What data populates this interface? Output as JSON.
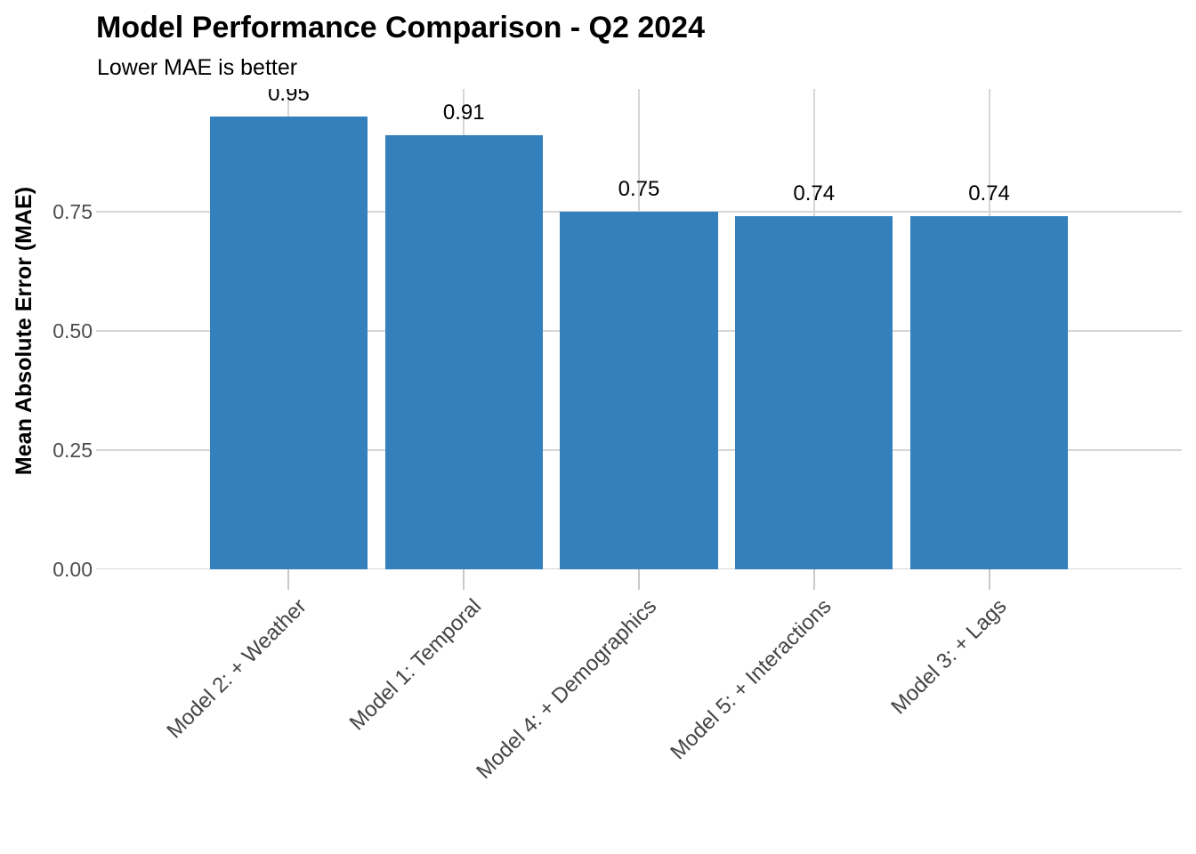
{
  "chart_data": {
    "type": "bar",
    "title": "Model Performance Comparison - Q2 2024",
    "subtitle": "Lower MAE is better",
    "xlabel": "",
    "ylabel": "Mean Absolute Error (MAE)",
    "categories": [
      "Model 2: + Weather",
      "Model 1: Temporal",
      "Model 4: + Demographics",
      "Model 5: + Interactions",
      "Model 3: + Lags"
    ],
    "values": [
      0.95,
      0.91,
      0.75,
      0.74,
      0.74
    ],
    "bar_value_labels": [
      "0.95",
      "0.91",
      "0.75",
      "0.74",
      "0.74"
    ],
    "yticks": [
      0,
      0.25,
      0.5,
      0.75
    ],
    "ytick_labels": [
      "0.00",
      "0.25",
      "0.50",
      "0.75"
    ],
    "ylim": [
      0,
      1.007
    ],
    "legend": "none",
    "grid": "major horizontal lines and vertical lines at bar centers",
    "x_label_rotation_deg": 45,
    "colors": {
      "bar": "#3380bd",
      "gridline": "#d6d6d6",
      "tick": "#c9c9c9",
      "axis_text": "#4d4d4d",
      "title_text": "#000000"
    }
  }
}
